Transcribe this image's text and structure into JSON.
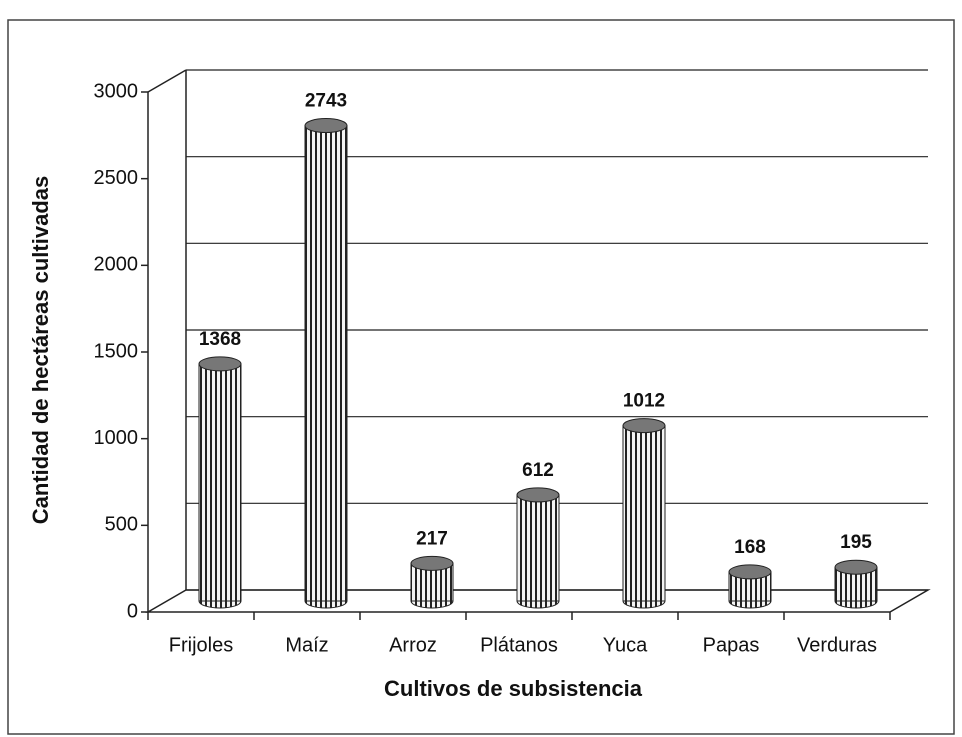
{
  "chart_data": {
    "type": "bar",
    "categories": [
      "Frijoles",
      "Maíz",
      "Arroz",
      "Plátanos",
      "Yuca",
      "Papas",
      "Verduras"
    ],
    "values": [
      1368,
      2743,
      217,
      612,
      1012,
      168,
      195
    ],
    "ylim": [
      0,
      3000
    ],
    "yticks": [
      0,
      500,
      1000,
      1500,
      2000,
      2500,
      3000
    ],
    "grid": true,
    "xlabel": "Cultivos de subsistencia",
    "ylabel": "Cantidad de hectáreas cultivadas"
  }
}
